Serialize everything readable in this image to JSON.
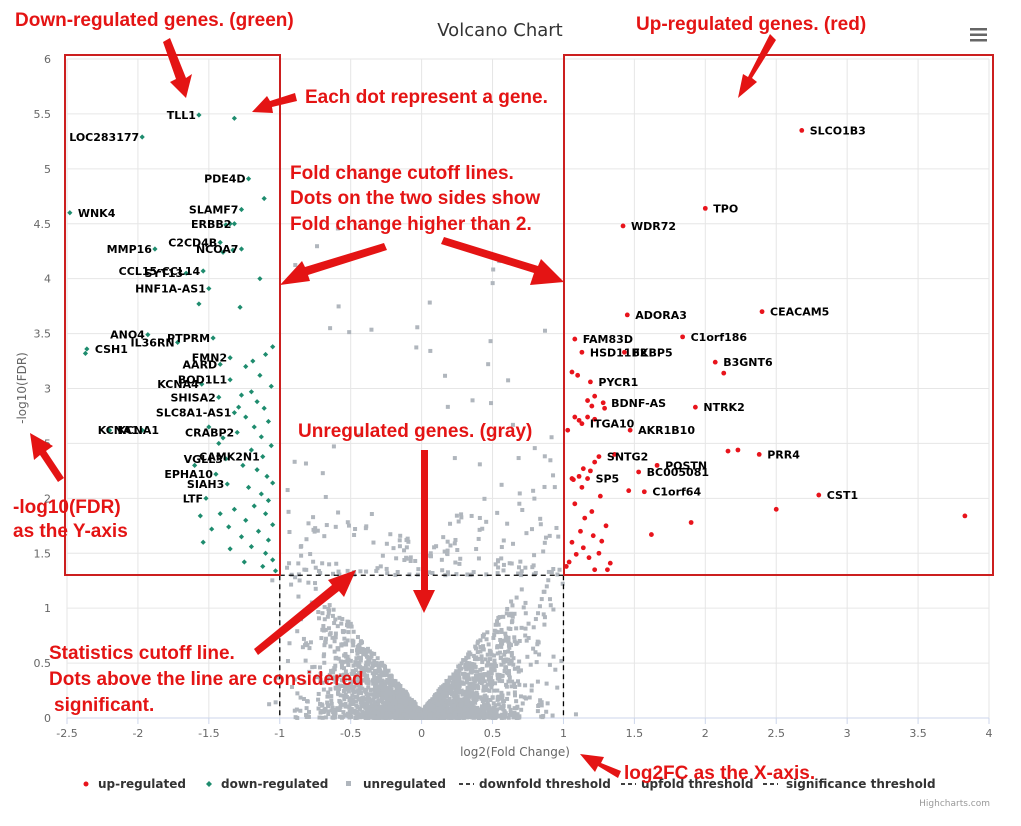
{
  "chart_data": {
    "type": "scatter",
    "title": "Volcano Chart",
    "xlabel": "log2(Fold Change)",
    "ylabel": "-log10(FDR)",
    "xlim": [
      -2.5,
      4
    ],
    "ylim": [
      0,
      6
    ],
    "x_ticks": [
      "-2.5",
      "-2",
      "-1.5",
      "-1",
      "-0.5",
      "0",
      "0.5",
      "1",
      "1.5",
      "2",
      "2.5",
      "3",
      "3.5",
      "4"
    ],
    "y_ticks": [
      "0",
      "0.5",
      "1",
      "1.5",
      "2",
      "2.5",
      "3",
      "3.5",
      "4",
      "4.5",
      "5",
      "5.5",
      "6"
    ],
    "grid": true,
    "thresholds": {
      "downfold": -1,
      "upfold": 1,
      "significance": 1.3
    },
    "series": [
      {
        "name": "up-regulated",
        "color": "#e8141c",
        "points": [
          {
            "x": 2.68,
            "y": 5.35,
            "label": "SLCO1B3"
          },
          {
            "x": 2.0,
            "y": 4.64,
            "label": "TPO"
          },
          {
            "x": 1.42,
            "y": 4.48,
            "label": "WDR72"
          },
          {
            "x": 2.4,
            "y": 3.7,
            "label": "CEACAM5"
          },
          {
            "x": 1.45,
            "y": 3.67,
            "label": "ADORA3"
          },
          {
            "x": 1.84,
            "y": 3.47,
            "label": "C1orf186"
          },
          {
            "x": 1.08,
            "y": 3.45,
            "label": "FAM83D"
          },
          {
            "x": 1.13,
            "y": 3.33,
            "label": "HSD11B2"
          },
          {
            "x": 1.43,
            "y": 3.33,
            "label": "FKBP5"
          },
          {
            "x": 2.07,
            "y": 3.24,
            "label": "B3GNT6"
          },
          {
            "x": 1.19,
            "y": 3.06,
            "label": "PYCR1"
          },
          {
            "x": 2.13,
            "y": 3.14
          },
          {
            "x": 1.28,
            "y": 2.87,
            "label": "BDNF-AS"
          },
          {
            "x": 1.93,
            "y": 2.83,
            "label": "NTRK2"
          },
          {
            "x": 1.13,
            "y": 2.68,
            "label": "ITGA10"
          },
          {
            "x": 1.47,
            "y": 2.62,
            "label": "AKR1B10"
          },
          {
            "x": 2.38,
            "y": 2.4,
            "label": "PRR4"
          },
          {
            "x": 2.16,
            "y": 2.43
          },
          {
            "x": 2.23,
            "y": 2.44
          },
          {
            "x": 1.25,
            "y": 2.38,
            "label": "SNTG2"
          },
          {
            "x": 1.36,
            "y": 2.4
          },
          {
            "x": 1.66,
            "y": 2.3,
            "label": "POSTN"
          },
          {
            "x": 1.53,
            "y": 2.24,
            "label": "BC005081"
          },
          {
            "x": 1.17,
            "y": 2.18,
            "label": "SP5"
          },
          {
            "x": 1.57,
            "y": 2.06,
            "label": "C1orf64"
          },
          {
            "x": 1.46,
            "y": 2.07
          },
          {
            "x": 2.8,
            "y": 2.03,
            "label": "CST1"
          },
          {
            "x": 2.5,
            "y": 1.9
          },
          {
            "x": 3.83,
            "y": 1.84
          },
          {
            "x": 1.9,
            "y": 1.78
          },
          {
            "x": 1.62,
            "y": 1.67
          },
          {
            "x": 1.06,
            "y": 3.15
          },
          {
            "x": 1.1,
            "y": 3.12
          },
          {
            "x": 1.22,
            "y": 2.93
          },
          {
            "x": 1.17,
            "y": 2.89
          },
          {
            "x": 1.2,
            "y": 2.84
          },
          {
            "x": 1.29,
            "y": 2.82
          },
          {
            "x": 1.17,
            "y": 2.74
          },
          {
            "x": 1.22,
            "y": 2.72
          },
          {
            "x": 1.11,
            "y": 2.71
          },
          {
            "x": 1.08,
            "y": 2.74
          },
          {
            "x": 1.03,
            "y": 2.62
          },
          {
            "x": 1.07,
            "y": 2.17
          },
          {
            "x": 1.11,
            "y": 2.2
          },
          {
            "x": 1.14,
            "y": 2.27
          },
          {
            "x": 1.19,
            "y": 2.25
          },
          {
            "x": 1.22,
            "y": 2.33
          },
          {
            "x": 1.13,
            "y": 2.1
          },
          {
            "x": 1.06,
            "y": 2.18
          },
          {
            "x": 1.26,
            "y": 2.02
          },
          {
            "x": 1.08,
            "y": 1.95
          },
          {
            "x": 1.2,
            "y": 1.88
          },
          {
            "x": 1.15,
            "y": 1.82
          },
          {
            "x": 1.3,
            "y": 1.75
          },
          {
            "x": 1.12,
            "y": 1.7
          },
          {
            "x": 1.21,
            "y": 1.66
          },
          {
            "x": 1.27,
            "y": 1.61
          },
          {
            "x": 1.06,
            "y": 1.6
          },
          {
            "x": 1.14,
            "y": 1.55
          },
          {
            "x": 1.09,
            "y": 1.49
          },
          {
            "x": 1.18,
            "y": 1.46
          },
          {
            "x": 1.25,
            "y": 1.5
          },
          {
            "x": 1.04,
            "y": 1.42
          },
          {
            "x": 1.33,
            "y": 1.41
          },
          {
            "x": 1.31,
            "y": 1.35
          },
          {
            "x": 1.22,
            "y": 1.35
          },
          {
            "x": 1.02,
            "y": 1.38
          }
        ]
      },
      {
        "name": "down-regulated",
        "color": "#1e8c6e",
        "points": [
          {
            "x": -1.57,
            "y": 5.49,
            "label": "TLL1"
          },
          {
            "x": -1.32,
            "y": 5.46
          },
          {
            "x": -1.97,
            "y": 5.29,
            "label": "LOC283177"
          },
          {
            "x": -2.48,
            "y": 4.6,
            "label": "WNK4"
          },
          {
            "x": -1.22,
            "y": 4.91,
            "label": "PDE4D"
          },
          {
            "x": -1.11,
            "y": 4.73
          },
          {
            "x": -1.27,
            "y": 4.63,
            "label": "SLAMF7"
          },
          {
            "x": -1.32,
            "y": 4.5,
            "label": "ERBB2"
          },
          {
            "x": -1.35,
            "y": 4.5
          },
          {
            "x": -1.38,
            "y": 4.49
          },
          {
            "x": -1.88,
            "y": 4.27,
            "label": "MMP16"
          },
          {
            "x": -1.42,
            "y": 4.33,
            "label": "C2CD4B"
          },
          {
            "x": -1.27,
            "y": 4.27,
            "label": "NCOA7"
          },
          {
            "x": -1.33,
            "y": 4.26
          },
          {
            "x": -1.4,
            "y": 4.24
          },
          {
            "x": -1.66,
            "y": 4.05,
            "label": "SYT13"
          },
          {
            "x": -1.54,
            "y": 4.07,
            "label": "CCL15-CCL14"
          },
          {
            "x": -1.14,
            "y": 4.0
          },
          {
            "x": -1.5,
            "y": 3.91,
            "label": "HNF1A-AS1"
          },
          {
            "x": -1.57,
            "y": 3.77
          },
          {
            "x": -1.28,
            "y": 3.74
          },
          {
            "x": -1.72,
            "y": 3.42,
            "label": "IL36RN"
          },
          {
            "x": -1.47,
            "y": 3.46,
            "label": "PTPRM"
          },
          {
            "x": -1.93,
            "y": 3.49,
            "label": "ANO4"
          },
          {
            "x": -2.36,
            "y": 3.36,
            "label": "CSH1"
          },
          {
            "x": -2.37,
            "y": 3.32
          },
          {
            "x": -1.42,
            "y": 3.22,
            "label": "AARD"
          },
          {
            "x": -1.35,
            "y": 3.28,
            "label": "FMN2"
          },
          {
            "x": -1.55,
            "y": 3.04,
            "label": "KCNA4"
          },
          {
            "x": -1.35,
            "y": 3.08,
            "label": "BOD1L1"
          },
          {
            "x": -1.43,
            "y": 2.92,
            "label": "SHISA2"
          },
          {
            "x": -1.32,
            "y": 2.78,
            "label": "SLC8A1-AS1"
          },
          {
            "x": -1.3,
            "y": 2.6,
            "label": "CRABP2"
          },
          {
            "x": -1.97,
            "y": 2.62,
            "label": "KCNA1"
          },
          {
            "x": -2.2,
            "y": 2.62,
            "label": "KCNA1"
          },
          {
            "x": -1.12,
            "y": 2.38,
            "label": "CAMK2N1"
          },
          {
            "x": -1.38,
            "y": 2.36,
            "label": "VGLL3"
          },
          {
            "x": -1.45,
            "y": 2.22,
            "label": "EPHA10"
          },
          {
            "x": -1.37,
            "y": 2.13,
            "label": "SIAH3"
          },
          {
            "x": -1.52,
            "y": 2.0,
            "label": "LTF"
          },
          {
            "x": -1.05,
            "y": 3.38
          },
          {
            "x": -1.1,
            "y": 3.31
          },
          {
            "x": -1.19,
            "y": 3.25
          },
          {
            "x": -1.24,
            "y": 3.2
          },
          {
            "x": -1.14,
            "y": 3.12
          },
          {
            "x": -1.06,
            "y": 3.02
          },
          {
            "x": -1.2,
            "y": 2.97
          },
          {
            "x": -1.27,
            "y": 2.94
          },
          {
            "x": -1.16,
            "y": 2.88
          },
          {
            "x": -1.11,
            "y": 2.82
          },
          {
            "x": -1.24,
            "y": 2.74
          },
          {
            "x": -1.08,
            "y": 2.7
          },
          {
            "x": -1.18,
            "y": 2.65
          },
          {
            "x": -1.13,
            "y": 2.56
          },
          {
            "x": -1.06,
            "y": 2.48
          },
          {
            "x": -1.2,
            "y": 2.44
          },
          {
            "x": -1.26,
            "y": 2.3
          },
          {
            "x": -1.16,
            "y": 2.26
          },
          {
            "x": -1.09,
            "y": 2.2
          },
          {
            "x": -1.05,
            "y": 2.14
          },
          {
            "x": -1.22,
            "y": 2.1
          },
          {
            "x": -1.13,
            "y": 2.04
          },
          {
            "x": -1.08,
            "y": 1.98
          },
          {
            "x": -1.18,
            "y": 1.93
          },
          {
            "x": -1.32,
            "y": 1.9
          },
          {
            "x": -1.42,
            "y": 1.86
          },
          {
            "x": -1.56,
            "y": 1.84
          },
          {
            "x": -1.1,
            "y": 1.86
          },
          {
            "x": -1.24,
            "y": 1.8
          },
          {
            "x": -1.05,
            "y": 1.76
          },
          {
            "x": -1.36,
            "y": 1.74
          },
          {
            "x": -1.48,
            "y": 1.72
          },
          {
            "x": -1.15,
            "y": 1.7
          },
          {
            "x": -1.27,
            "y": 1.65
          },
          {
            "x": -1.08,
            "y": 1.62
          },
          {
            "x": -1.54,
            "y": 1.6
          },
          {
            "x": -1.2,
            "y": 1.56
          },
          {
            "x": -1.35,
            "y": 1.54
          },
          {
            "x": -1.1,
            "y": 1.5
          },
          {
            "x": -1.05,
            "y": 1.44
          },
          {
            "x": -1.25,
            "y": 1.42
          },
          {
            "x": -1.12,
            "y": 1.38
          },
          {
            "x": -1.03,
            "y": 1.34
          },
          {
            "x": -1.43,
            "y": 2.5
          },
          {
            "x": -1.5,
            "y": 2.65
          },
          {
            "x": -1.6,
            "y": 2.3
          },
          {
            "x": -1.4,
            "y": 2.55
          },
          {
            "x": -1.29,
            "y": 2.83
          }
        ]
      },
      {
        "name": "unregulated",
        "color": "#b0b6bd"
      },
      {
        "name": "downfold threshold",
        "color": "#000000"
      },
      {
        "name": "upfold threshold",
        "color": "#000000"
      },
      {
        "name": "significance threshold",
        "color": "#000000"
      }
    ]
  },
  "menu": {
    "icon": "hamburger-menu-icon"
  },
  "credit": "Highcharts.com",
  "annotations": {
    "down": "Down-regulated genes. (green)",
    "up": "Up-regulated genes. (red)",
    "dot": "Each dot represent a gene.",
    "fold1": "Fold change cutoff lines.",
    "fold2": "Dots on the two sides show",
    "fold3": "Fold change higher than 2.",
    "unreg": "Unregulated genes. (gray)",
    "yaxis1": "-log10(FDR)",
    "yaxis2": "as the Y-axis",
    "stat1": "Statistics cutoff line.",
    "stat2": "Dots above the line are considered",
    "stat3": "significant.",
    "xaxis": "log2FC as the X-axis."
  }
}
